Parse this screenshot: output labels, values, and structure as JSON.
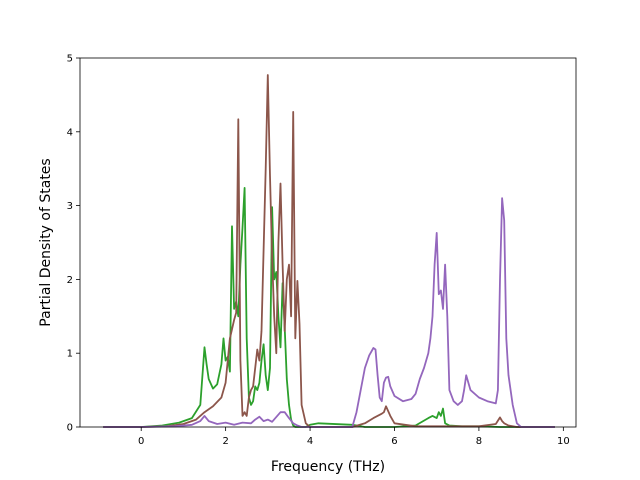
{
  "chart_data": {
    "type": "line",
    "xlabel": "Frequency (THz)",
    "ylabel": "Partial Density of States",
    "xlim": [
      -1.45,
      10.3
    ],
    "ylim": [
      0,
      5
    ],
    "xticks": [
      0,
      2,
      4,
      6,
      8,
      10
    ],
    "yticks": [
      0,
      1,
      2,
      3,
      4,
      5
    ],
    "grid": false,
    "series": [
      {
        "color": "#2ca02c",
        "x": [
          -0.9,
          0.0,
          0.5,
          0.9,
          1.2,
          1.4,
          1.5,
          1.55,
          1.6,
          1.7,
          1.8,
          1.9,
          1.95,
          2.0,
          2.05,
          2.1,
          2.15,
          2.2,
          2.25,
          2.3,
          2.35,
          2.4,
          2.45,
          2.5,
          2.55,
          2.6,
          2.65,
          2.7,
          2.75,
          2.8,
          2.85,
          2.9,
          2.95,
          3.0,
          3.05,
          3.1,
          3.15,
          3.2,
          3.25,
          3.3,
          3.35,
          3.4,
          3.45,
          3.5,
          3.55,
          3.6,
          3.65,
          3.7,
          3.75,
          3.8,
          3.9,
          4.0,
          4.2,
          5.0,
          5.3,
          5.5,
          5.7,
          5.8,
          6.0,
          6.5,
          6.8,
          6.9,
          7.0,
          7.05,
          7.1,
          7.15,
          7.2,
          7.3,
          7.6,
          8.0,
          8.5,
          9.0,
          9.8
        ],
        "y": [
          0,
          0,
          0.02,
          0.06,
          0.12,
          0.3,
          1.08,
          0.85,
          0.65,
          0.52,
          0.58,
          0.85,
          1.2,
          0.9,
          0.95,
          0.75,
          2.72,
          1.6,
          1.7,
          1.5,
          2.2,
          2.7,
          3.24,
          1.2,
          0.4,
          0.3,
          0.35,
          0.55,
          0.5,
          0.6,
          0.9,
          1.12,
          0.7,
          0.5,
          0.8,
          2.98,
          2.0,
          2.1,
          1.5,
          1.08,
          1.95,
          1.35,
          0.65,
          0.3,
          0.1,
          0.02,
          0,
          0,
          0,
          0,
          0,
          0.03,
          0.05,
          0.03,
          0,
          0,
          0,
          0,
          0,
          0.02,
          0.12,
          0.15,
          0.12,
          0.2,
          0.15,
          0.25,
          0.05,
          0.02,
          0.01,
          0.01,
          0,
          0,
          0
        ]
      },
      {
        "color": "#8c564b",
        "x": [
          -0.9,
          0.0,
          0.6,
          1.0,
          1.3,
          1.5,
          1.7,
          1.9,
          2.0,
          2.1,
          2.2,
          2.25,
          2.3,
          2.35,
          2.4,
          2.45,
          2.5,
          2.55,
          2.6,
          2.65,
          2.7,
          2.75,
          2.8,
          2.85,
          2.9,
          2.95,
          3.0,
          3.05,
          3.1,
          3.15,
          3.2,
          3.25,
          3.3,
          3.35,
          3.4,
          3.45,
          3.5,
          3.55,
          3.6,
          3.65,
          3.7,
          3.75,
          3.8,
          3.9,
          4.0,
          4.5,
          5.0,
          5.3,
          5.5,
          5.7,
          5.75,
          5.8,
          5.9,
          6.0,
          6.5,
          7.0,
          7.5,
          8.0,
          8.4,
          8.5,
          8.55,
          8.6,
          8.7,
          8.9,
          9.8
        ],
        "y": [
          0,
          0,
          0.01,
          0.04,
          0.1,
          0.2,
          0.28,
          0.4,
          0.6,
          1.2,
          1.45,
          1.55,
          4.17,
          0.9,
          0.15,
          0.2,
          0.15,
          0.4,
          0.5,
          0.55,
          0.8,
          1.05,
          0.9,
          1.3,
          2.4,
          3.5,
          4.77,
          3.4,
          2.3,
          1.5,
          1.0,
          2.5,
          3.3,
          2.2,
          1.3,
          2.0,
          2.2,
          1.5,
          4.27,
          1.2,
          1.98,
          1.4,
          0.3,
          0.05,
          0,
          0,
          0,
          0.05,
          0.12,
          0.18,
          0.2,
          0.28,
          0.15,
          0.05,
          0.01,
          0.01,
          0.01,
          0.01,
          0.04,
          0.13,
          0.08,
          0.05,
          0.02,
          0,
          0
        ]
      },
      {
        "color": "#9467bd",
        "x": [
          -0.9,
          0.0,
          0.8,
          1.2,
          1.4,
          1.5,
          1.6,
          1.8,
          2.0,
          2.2,
          2.4,
          2.6,
          2.7,
          2.8,
          2.9,
          3.0,
          3.1,
          3.3,
          3.4,
          3.5,
          3.6,
          3.7,
          3.8,
          4.0,
          5.0,
          5.1,
          5.2,
          5.3,
          5.4,
          5.5,
          5.55,
          5.6,
          5.65,
          5.7,
          5.75,
          5.8,
          5.85,
          5.9,
          6.0,
          6.2,
          6.4,
          6.5,
          6.6,
          6.7,
          6.8,
          6.85,
          6.9,
          6.95,
          7.0,
          7.05,
          7.1,
          7.15,
          7.2,
          7.25,
          7.3,
          7.4,
          7.5,
          7.6,
          7.65,
          7.7,
          7.8,
          8.0,
          8.2,
          8.4,
          8.45,
          8.5,
          8.55,
          8.6,
          8.65,
          8.7,
          8.8,
          8.9,
          9.0,
          9.8
        ],
        "y": [
          0,
          0,
          0.01,
          0.03,
          0.08,
          0.15,
          0.08,
          0.04,
          0.06,
          0.03,
          0.06,
          0.05,
          0.1,
          0.14,
          0.08,
          0.1,
          0.07,
          0.2,
          0.2,
          0.12,
          0.05,
          0.02,
          0,
          0,
          0,
          0.2,
          0.5,
          0.8,
          0.97,
          1.07,
          1.05,
          0.7,
          0.4,
          0.35,
          0.6,
          0.67,
          0.68,
          0.55,
          0.42,
          0.35,
          0.38,
          0.45,
          0.65,
          0.8,
          1.0,
          1.2,
          1.5,
          2.2,
          2.63,
          1.8,
          1.85,
          1.6,
          2.2,
          1.5,
          0.5,
          0.35,
          0.3,
          0.35,
          0.5,
          0.7,
          0.5,
          0.4,
          0.35,
          0.32,
          0.5,
          2.0,
          3.1,
          2.8,
          1.2,
          0.7,
          0.3,
          0.05,
          0,
          0
        ]
      }
    ]
  }
}
